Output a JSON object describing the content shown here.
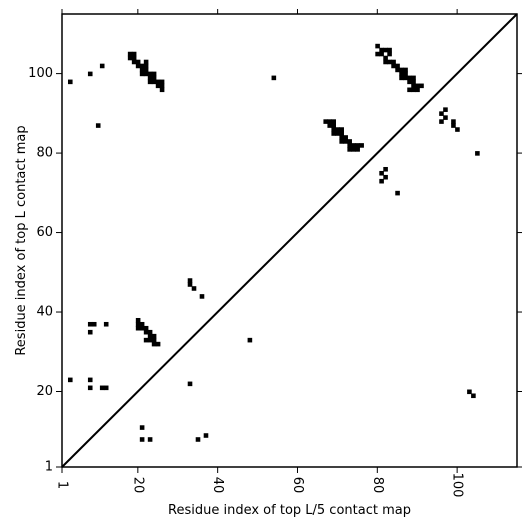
{
  "chart_data": {
    "type": "scatter",
    "title": "",
    "xlabel": "Residue index of top L/5 contact map",
    "ylabel": "Residue index of top L contact map",
    "xlim": [
      1,
      115
    ],
    "ylim": [
      1,
      115
    ],
    "x_ticks": [
      1,
      20,
      40,
      60,
      80,
      100
    ],
    "x_tick_labels": [
      "1",
      "20",
      "40",
      "60",
      "80",
      "100"
    ],
    "y_ticks": [
      1,
      20,
      40,
      60,
      80,
      100
    ],
    "y_tick_labels": [
      "1",
      "20",
      "40",
      "60",
      "80",
      "100"
    ],
    "grid": false,
    "legend": "none",
    "marker": "filled-square",
    "color": "#000000",
    "diagonal_line": true,
    "series": [
      {
        "points": [
          [
            3,
            98
          ],
          [
            8,
            100
          ],
          [
            10,
            87
          ],
          [
            11,
            102
          ],
          [
            18,
            105
          ],
          [
            19,
            105
          ],
          [
            18,
            104
          ],
          [
            19,
            104
          ],
          [
            19,
            103
          ],
          [
            20,
            103
          ],
          [
            20,
            102
          ],
          [
            21,
            102
          ],
          [
            22,
            102
          ],
          [
            21,
            101
          ],
          [
            22,
            101
          ],
          [
            22,
            103
          ],
          [
            21,
            100
          ],
          [
            22,
            100
          ],
          [
            23,
            100
          ],
          [
            24,
            100
          ],
          [
            23,
            99
          ],
          [
            24,
            99
          ],
          [
            23,
            98
          ],
          [
            24,
            98
          ],
          [
            25,
            98
          ],
          [
            26,
            98
          ],
          [
            25,
            97
          ],
          [
            26,
            97
          ],
          [
            26,
            96
          ],
          [
            54,
            99
          ],
          [
            80,
            107
          ],
          [
            80,
            105
          ],
          [
            81,
            106
          ],
          [
            82,
            106
          ],
          [
            83,
            106
          ],
          [
            81,
            105
          ],
          [
            82,
            104
          ],
          [
            83,
            105
          ],
          [
            82,
            103
          ],
          [
            83,
            103
          ],
          [
            84,
            103
          ],
          [
            84,
            102
          ],
          [
            85,
            102
          ],
          [
            85,
            101
          ],
          [
            86,
            101
          ],
          [
            87,
            101
          ],
          [
            86,
            100
          ],
          [
            87,
            100
          ],
          [
            86,
            99
          ],
          [
            87,
            99
          ],
          [
            88,
            99
          ],
          [
            89,
            99
          ],
          [
            88,
            98
          ],
          [
            89,
            98
          ],
          [
            89,
            97
          ],
          [
            90,
            97
          ],
          [
            91,
            97
          ],
          [
            88,
            96
          ],
          [
            89,
            96
          ],
          [
            90,
            96
          ],
          [
            67,
            88
          ],
          [
            68,
            88
          ],
          [
            69,
            88
          ],
          [
            68,
            87
          ],
          [
            69,
            87
          ],
          [
            69,
            86
          ],
          [
            70,
            86
          ],
          [
            71,
            86
          ],
          [
            69,
            85
          ],
          [
            70,
            85
          ],
          [
            71,
            85
          ],
          [
            71,
            84
          ],
          [
            72,
            84
          ],
          [
            71,
            83
          ],
          [
            72,
            83
          ],
          [
            73,
            83
          ],
          [
            73,
            82
          ],
          [
            74,
            82
          ],
          [
            75,
            82
          ],
          [
            76,
            82
          ],
          [
            73,
            81
          ],
          [
            74,
            81
          ],
          [
            75,
            81
          ],
          [
            96,
            90
          ],
          [
            97,
            91
          ],
          [
            96,
            88
          ],
          [
            97,
            89
          ],
          [
            99,
            88
          ],
          [
            99,
            87
          ],
          [
            100,
            86
          ],
          [
            105,
            80
          ],
          [
            82,
            76
          ],
          [
            81,
            75
          ],
          [
            82,
            74
          ],
          [
            81,
            73
          ],
          [
            85,
            70
          ],
          [
            33,
            48
          ],
          [
            33,
            47
          ],
          [
            34,
            46
          ],
          [
            36,
            44
          ],
          [
            8,
            37
          ],
          [
            9,
            37
          ],
          [
            12,
            37
          ],
          [
            8,
            35
          ],
          [
            20,
            38
          ],
          [
            20,
            37
          ],
          [
            21,
            37
          ],
          [
            20,
            36
          ],
          [
            21,
            36
          ],
          [
            22,
            36
          ],
          [
            22,
            35
          ],
          [
            23,
            35
          ],
          [
            23,
            34
          ],
          [
            24,
            34
          ],
          [
            22,
            33
          ],
          [
            23,
            33
          ],
          [
            24,
            33
          ],
          [
            24,
            32
          ],
          [
            25,
            32
          ],
          [
            48,
            33
          ],
          [
            3,
            23
          ],
          [
            8,
            23
          ],
          [
            8,
            21
          ],
          [
            11,
            21
          ],
          [
            12,
            21
          ],
          [
            33,
            22
          ],
          [
            103,
            20
          ],
          [
            104,
            19
          ],
          [
            21,
            11
          ],
          [
            21,
            8
          ],
          [
            23,
            8
          ],
          [
            35,
            8
          ],
          [
            37,
            9
          ]
        ]
      }
    ]
  }
}
